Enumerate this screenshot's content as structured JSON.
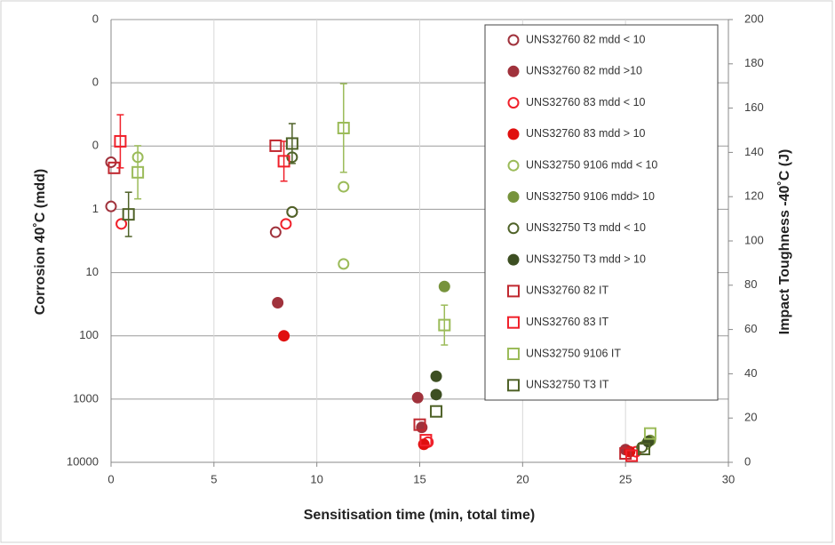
{
  "chart_data": {
    "type": "scatter",
    "x_label": "Sensitisation time (min, total time)",
    "y_label": "Corrosion 40˚C (mdd)",
    "y2_label": "Impact Toughness -40˚C (J)",
    "xlim": [
      0,
      30
    ],
    "xticks": [
      0,
      5,
      10,
      15,
      20,
      25,
      30
    ],
    "ylim": [
      10000,
      0.001
    ],
    "log_y": true,
    "yticks": [
      {
        "value": 0.001,
        "label": "0"
      },
      {
        "value": 0.01,
        "label": "0"
      },
      {
        "value": 0.1,
        "label": "0"
      },
      1,
      10,
      100,
      1000,
      10000
    ],
    "y2lim": [
      0,
      200
    ],
    "y2ticks": [
      0,
      20,
      40,
      60,
      80,
      100,
      120,
      140,
      160,
      180,
      200
    ],
    "grid": true,
    "legend": "upper right",
    "series": [
      {
        "name": "UNS32760 82 mdd < 10",
        "color": "#a0323c",
        "marker": "circle-open",
        "axis": "y",
        "x": [
          0,
          0,
          8,
          8.8
        ],
        "values": [
          0.18,
          0.9,
          2.3,
          1.1
        ]
      },
      {
        "name": "UNS32760 82 mdd >10",
        "color": "#a0323c",
        "marker": "circle-filled",
        "axis": "y",
        "x": [
          8.1,
          14.9,
          15.1,
          25
        ],
        "values": [
          30,
          950,
          2800,
          6300
        ]
      },
      {
        "name": "UNS32760 83 mdd < 10",
        "color": "#f0202a",
        "marker": "circle-open",
        "axis": "y",
        "x": [
          0.5,
          8.5,
          15.4,
          25.5
        ],
        "values": [
          1.7,
          1.7,
          4800,
          6800
        ]
      },
      {
        "name": "UNS32760 83 mdd > 10",
        "color": "#e0100f",
        "marker": "circle-filled",
        "axis": "y",
        "x": [
          8.4,
          15.2,
          25.2
        ],
        "values": [
          100,
          5200,
          6800
        ]
      },
      {
        "name": "UNS32750 9106 mdd < 10",
        "color": "#9bbb59",
        "marker": "circle-open",
        "axis": "y",
        "x": [
          1.3,
          11.3,
          11.3,
          26
        ],
        "values": [
          0.15,
          0.44,
          7.3,
          5200
        ]
      },
      {
        "name": "UNS32750 9106 mdd> 10",
        "color": "#77933c",
        "marker": "circle-filled",
        "axis": "y",
        "x": [
          16.2,
          26.2
        ],
        "values": [
          16.6,
          4500
        ]
      },
      {
        "name": "UNS32750 T3 mdd < 10",
        "color": "#4f6228",
        "marker": "circle-open",
        "axis": "y",
        "x": [
          8.8,
          8.8,
          25.8
        ],
        "values": [
          0.15,
          1.1,
          5800
        ]
      },
      {
        "name": "UNS32750 T3 mdd > 10",
        "color": "#3d4f22",
        "marker": "circle-filled",
        "axis": "y",
        "x": [
          15.8,
          15.8,
          26.1
        ],
        "values": [
          437,
          850,
          4700
        ]
      },
      {
        "name": "UNS32760 82 IT",
        "color": "#c0282f",
        "marker": "square-open",
        "axis": "y2",
        "x": [
          0.15,
          8,
          15,
          25
        ],
        "values": [
          133,
          143,
          17,
          4
        ]
      },
      {
        "name": "UNS32760 83 IT",
        "color": "#f0202a",
        "marker": "square-open",
        "axis": "y2",
        "x": [
          0.45,
          8.4,
          15.3,
          25.3
        ],
        "values": [
          145,
          136,
          10,
          3
        ],
        "errors": [
          12,
          9,
          null,
          null
        ]
      },
      {
        "name": "UNS32750 9106 IT",
        "color": "#9bbb59",
        "marker": "square-open",
        "axis": "y2",
        "x": [
          1.3,
          11.3,
          16.2,
          26.2
        ],
        "values": [
          131,
          151,
          62,
          13
        ],
        "errors": [
          12,
          20,
          9,
          null
        ]
      },
      {
        "name": "UNS32750 T3 IT",
        "color": "#4f6228",
        "marker": "square-open",
        "axis": "y2",
        "x": [
          0.85,
          8.8,
          15.8,
          25.9
        ],
        "values": [
          112,
          144,
          23,
          6
        ],
        "errors": [
          10,
          9,
          null,
          null
        ]
      }
    ]
  }
}
